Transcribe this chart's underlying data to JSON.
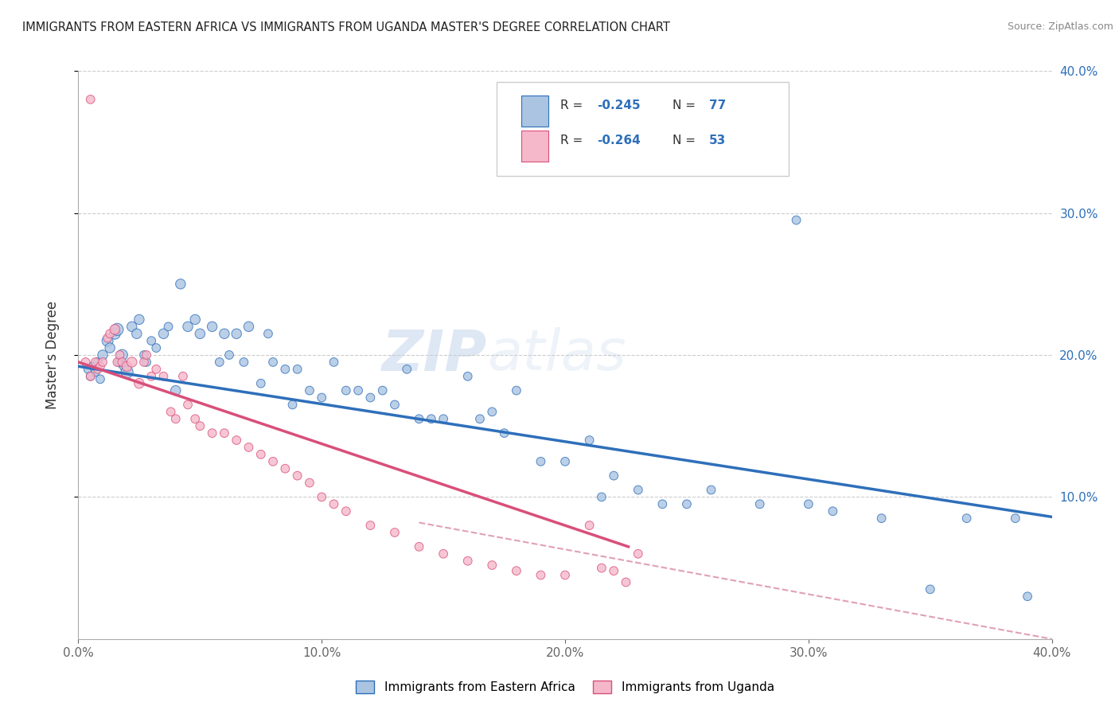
{
  "title": "IMMIGRANTS FROM EASTERN AFRICA VS IMMIGRANTS FROM UGANDA MASTER'S DEGREE CORRELATION CHART",
  "source": "Source: ZipAtlas.com",
  "ylabel": "Master's Degree",
  "legend_label1": "Immigrants from Eastern Africa",
  "legend_label2": "Immigrants from Uganda",
  "R1": -0.245,
  "N1": 77,
  "R2": -0.264,
  "N2": 53,
  "color_blue": "#aac4e2",
  "color_pink": "#f5b8cb",
  "color_blue_line": "#2e6fba",
  "color_pink_line": "#d94f7a",
  "color_dashed": "#e0a0b8",
  "xlim": [
    0.0,
    0.4
  ],
  "ylim": [
    0.0,
    0.4
  ],
  "xticks": [
    0.0,
    0.1,
    0.2,
    0.3,
    0.4
  ],
  "watermark": "ZIPatlas",
  "blue_line_x": [
    0.0,
    0.4
  ],
  "blue_line_y": [
    0.192,
    0.086
  ],
  "pink_line_x": [
    0.0,
    0.226
  ],
  "pink_line_y": [
    0.195,
    0.065
  ],
  "dashed_line_x": [
    0.14,
    0.4
  ],
  "dashed_line_y": [
    0.082,
    0.0
  ],
  "blue_x": [
    0.004,
    0.005,
    0.006,
    0.007,
    0.008,
    0.009,
    0.01,
    0.012,
    0.013,
    0.015,
    0.016,
    0.017,
    0.018,
    0.019,
    0.02,
    0.022,
    0.024,
    0.025,
    0.027,
    0.028,
    0.03,
    0.032,
    0.035,
    0.037,
    0.04,
    0.042,
    0.045,
    0.048,
    0.05,
    0.055,
    0.058,
    0.06,
    0.062,
    0.065,
    0.068,
    0.07,
    0.075,
    0.078,
    0.08,
    0.085,
    0.088,
    0.09,
    0.095,
    0.1,
    0.105,
    0.11,
    0.115,
    0.12,
    0.125,
    0.13,
    0.135,
    0.14,
    0.145,
    0.15,
    0.16,
    0.165,
    0.17,
    0.175,
    0.18,
    0.19,
    0.2,
    0.21,
    0.215,
    0.22,
    0.23,
    0.24,
    0.25,
    0.26,
    0.28,
    0.295,
    0.3,
    0.31,
    0.33,
    0.35,
    0.365,
    0.385,
    0.39
  ],
  "blue_y": [
    0.19,
    0.185,
    0.192,
    0.188,
    0.195,
    0.183,
    0.2,
    0.21,
    0.205,
    0.215,
    0.218,
    0.195,
    0.2,
    0.192,
    0.188,
    0.22,
    0.215,
    0.225,
    0.2,
    0.195,
    0.21,
    0.205,
    0.215,
    0.22,
    0.175,
    0.25,
    0.22,
    0.225,
    0.215,
    0.22,
    0.195,
    0.215,
    0.2,
    0.215,
    0.195,
    0.22,
    0.18,
    0.215,
    0.195,
    0.19,
    0.165,
    0.19,
    0.175,
    0.17,
    0.195,
    0.175,
    0.175,
    0.17,
    0.175,
    0.165,
    0.19,
    0.155,
    0.155,
    0.155,
    0.185,
    0.155,
    0.16,
    0.145,
    0.175,
    0.125,
    0.125,
    0.14,
    0.1,
    0.115,
    0.105,
    0.095,
    0.095,
    0.105,
    0.095,
    0.295,
    0.095,
    0.09,
    0.085,
    0.035,
    0.085,
    0.085,
    0.03
  ],
  "blue_size": [
    60,
    60,
    60,
    60,
    60,
    60,
    80,
    100,
    80,
    100,
    120,
    80,
    100,
    80,
    120,
    80,
    80,
    80,
    60,
    60,
    60,
    60,
    80,
    60,
    80,
    80,
    80,
    80,
    80,
    80,
    60,
    80,
    60,
    80,
    60,
    80,
    60,
    60,
    60,
    60,
    60,
    60,
    60,
    60,
    60,
    60,
    60,
    60,
    60,
    60,
    60,
    60,
    60,
    60,
    60,
    60,
    60,
    60,
    60,
    60,
    60,
    60,
    60,
    60,
    60,
    60,
    60,
    60,
    60,
    60,
    60,
    60,
    60,
    60,
    60,
    60,
    60
  ],
  "pink_x": [
    0.003,
    0.005,
    0.007,
    0.008,
    0.009,
    0.01,
    0.012,
    0.013,
    0.015,
    0.016,
    0.017,
    0.018,
    0.02,
    0.022,
    0.025,
    0.027,
    0.028,
    0.03,
    0.032,
    0.035,
    0.038,
    0.04,
    0.043,
    0.045,
    0.048,
    0.05,
    0.055,
    0.06,
    0.065,
    0.07,
    0.075,
    0.08,
    0.085,
    0.09,
    0.095,
    0.1,
    0.105,
    0.11,
    0.12,
    0.13,
    0.14,
    0.15,
    0.16,
    0.17,
    0.18,
    0.19,
    0.2,
    0.21,
    0.215,
    0.22,
    0.225,
    0.23,
    0.005
  ],
  "pink_y": [
    0.195,
    0.185,
    0.195,
    0.19,
    0.192,
    0.195,
    0.212,
    0.215,
    0.218,
    0.195,
    0.2,
    0.195,
    0.192,
    0.195,
    0.18,
    0.195,
    0.2,
    0.185,
    0.19,
    0.185,
    0.16,
    0.155,
    0.185,
    0.165,
    0.155,
    0.15,
    0.145,
    0.145,
    0.14,
    0.135,
    0.13,
    0.125,
    0.12,
    0.115,
    0.11,
    0.1,
    0.095,
    0.09,
    0.08,
    0.075,
    0.065,
    0.06,
    0.055,
    0.052,
    0.048,
    0.045,
    0.045,
    0.08,
    0.05,
    0.048,
    0.04,
    0.06,
    0.38
  ],
  "pink_size": [
    60,
    60,
    60,
    60,
    60,
    60,
    60,
    60,
    80,
    60,
    60,
    60,
    80,
    80,
    80,
    60,
    60,
    60,
    60,
    60,
    60,
    60,
    60,
    60,
    60,
    60,
    60,
    60,
    60,
    60,
    60,
    60,
    60,
    60,
    60,
    60,
    60,
    60,
    60,
    60,
    60,
    60,
    60,
    60,
    60,
    60,
    60,
    60,
    60,
    60,
    60,
    60,
    60
  ]
}
